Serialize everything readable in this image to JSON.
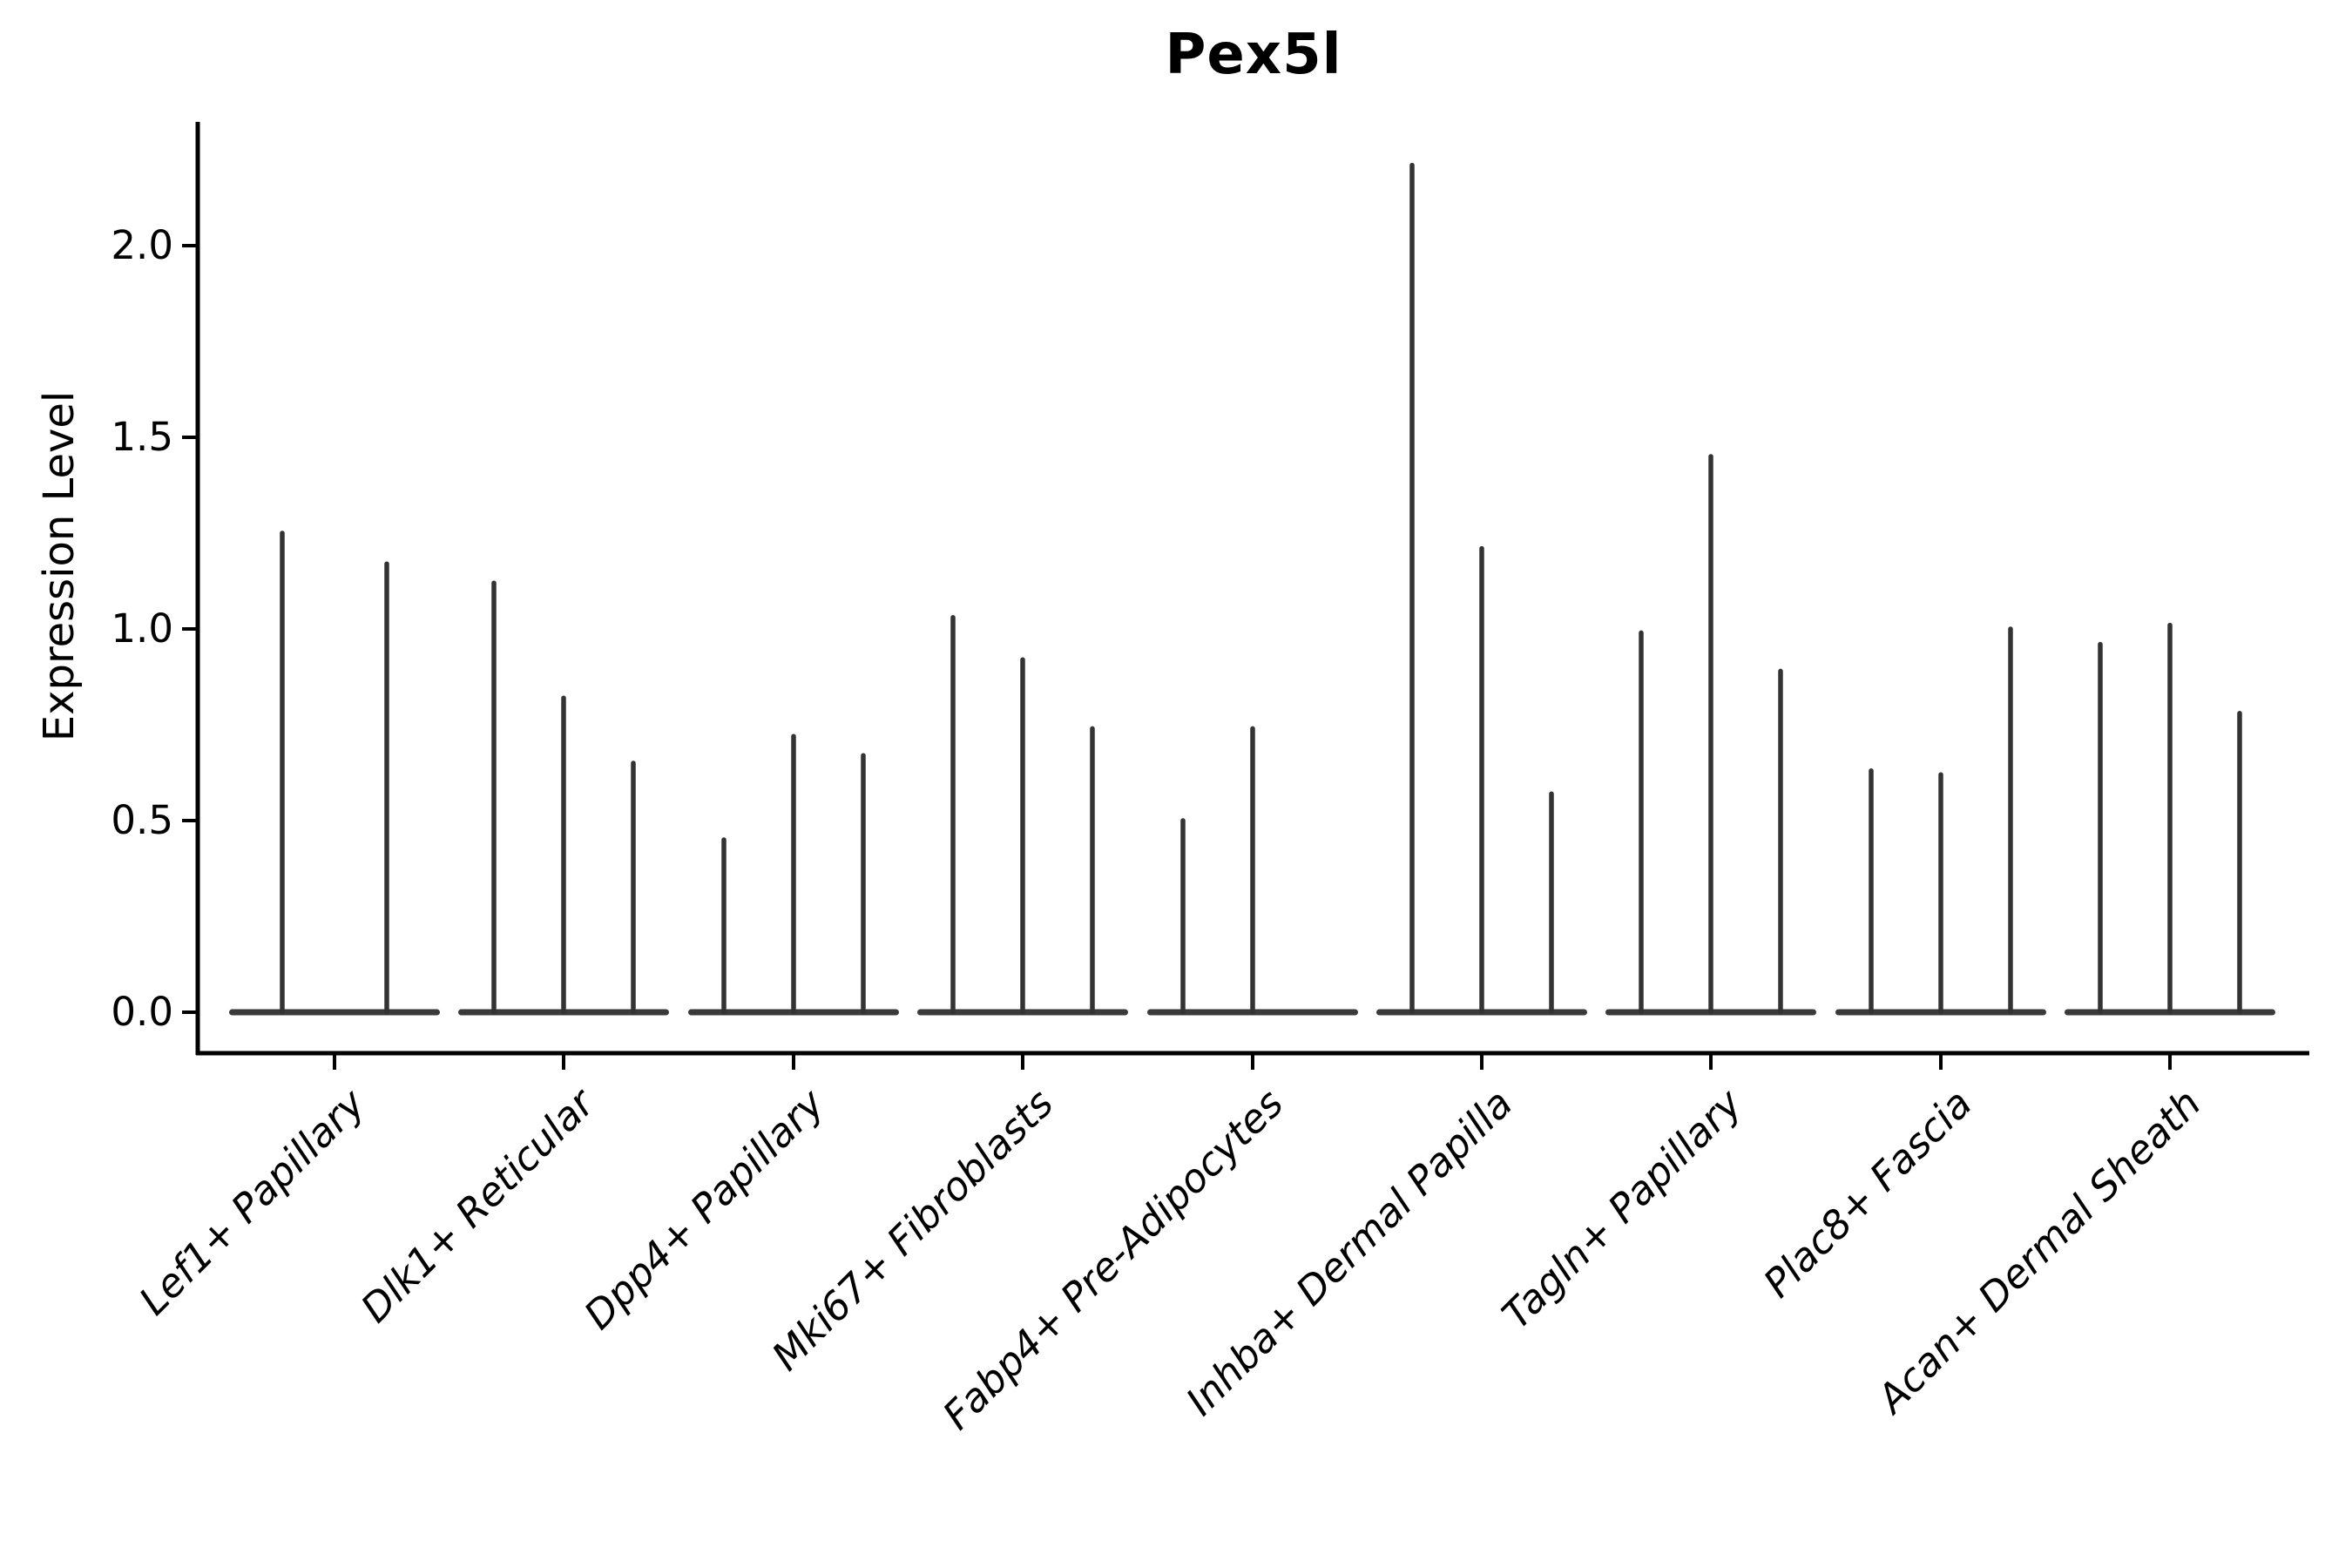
{
  "figure": {
    "title": "Pex5l",
    "ylabel": "Expression Level"
  },
  "chart_data": {
    "type": "violin",
    "title": "Pex5l",
    "xlabel": "",
    "ylabel": "Expression Level",
    "yticks": [
      0.0,
      0.5,
      1.0,
      1.5,
      2.0
    ],
    "ylim": [
      -0.107,
      2.323
    ],
    "grid": false,
    "legend": false,
    "x_tick_style": "italic, rotated 45deg, right-anchored",
    "line_color": "#333333",
    "baseline_color": "#3a3a3a",
    "axis_color": "#000000",
    "categories": [
      "Lef1+ Papillary",
      "Dlk1+ Reticular",
      "Dpp4+ Papillary",
      "Mki67+ Fibroblasts",
      "Fabp4+ Pre-Adipocytes",
      "Inhba+ Dermal Papilla",
      "Tagln+ Papillary",
      "Plac8+ Fascia",
      "Acan+ Dermal Sheath"
    ],
    "groups": [
      {
        "label": "Lef1+ Papillary",
        "violin_maxima": [
          1.25,
          1.17
        ]
      },
      {
        "label": "Dlk1+ Reticular",
        "violin_maxima": [
          1.12,
          0.82,
          0.65
        ]
      },
      {
        "label": "Dpp4+ Papillary",
        "violin_maxima": [
          0.45,
          0.72,
          0.67
        ]
      },
      {
        "label": "Mki67+ Fibroblasts",
        "violin_maxima": [
          1.03,
          0.92,
          0.74
        ]
      },
      {
        "label": "Fabp4+ Pre-Adipocytes",
        "violin_maxima": [
          0.5,
          0.74,
          0.0
        ]
      },
      {
        "label": "Inhba+ Dermal Papilla",
        "violin_maxima": [
          2.21,
          1.21,
          0.57
        ]
      },
      {
        "label": "Tagln+ Papillary",
        "violin_maxima": [
          0.99,
          1.45,
          0.89
        ]
      },
      {
        "label": "Plac8+ Fascia",
        "violin_maxima": [
          0.63,
          0.62,
          1.0
        ]
      },
      {
        "label": "Acan+ Dermal Sheath",
        "violin_maxima": [
          0.96,
          1.01,
          0.78
        ]
      }
    ],
    "description": "Violin plot of Pex5l expression; each group shows thin spike violins with mass concentrated at 0 expression"
  }
}
